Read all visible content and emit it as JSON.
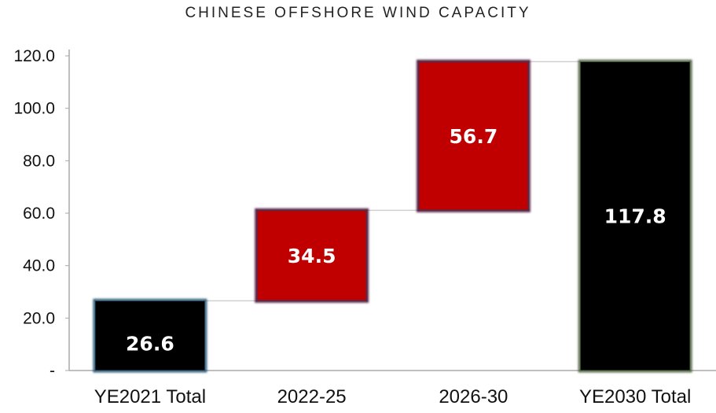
{
  "chart_data": {
    "type": "bar",
    "subtype": "waterfall",
    "title": "CHINESE OFFSHORE WIND CAPACITY",
    "xlabel": "",
    "ylabel": "",
    "categories": [
      "YE2021 Total",
      "2022-25",
      "2026-30",
      "YE2030 Total"
    ],
    "values": [
      26.6,
      34.5,
      56.7,
      117.8
    ],
    "data_labels": [
      "26.6",
      "34.5",
      "56.7",
      "117.8"
    ],
    "bar_kinds": [
      "total",
      "increment",
      "increment",
      "total"
    ],
    "ylim": [
      0,
      120
    ],
    "yticks": [
      0,
      20,
      40,
      60,
      80,
      100,
      120
    ],
    "ytick_labels": [
      "-",
      "20.0",
      "40.0",
      "60.0",
      "80.0",
      "100.0",
      "120.0"
    ],
    "grid": false,
    "legend": "none",
    "colors": {
      "total": "#000000",
      "increment": "#c00000",
      "increment_border": "#5a2a4a",
      "connector": "#d0d0d0",
      "axis": "#aaaaaa"
    }
  }
}
